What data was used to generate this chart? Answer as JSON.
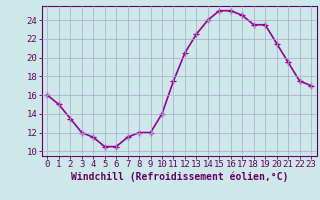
{
  "x": [
    0,
    1,
    2,
    3,
    4,
    5,
    6,
    7,
    8,
    9,
    10,
    11,
    12,
    13,
    14,
    15,
    16,
    17,
    18,
    19,
    20,
    21,
    22,
    23
  ],
  "y": [
    16,
    15,
    13.5,
    12,
    11.5,
    10.5,
    10.5,
    11.5,
    12,
    12,
    14,
    17.5,
    20.5,
    22.5,
    24,
    25,
    25,
    24.5,
    23.5,
    23.5,
    21.5,
    19.5,
    17.5,
    17
  ],
  "xlim": [
    -0.5,
    23.5
  ],
  "ylim": [
    9.5,
    25.5
  ],
  "yticks": [
    10,
    12,
    14,
    16,
    18,
    20,
    22,
    24
  ],
  "xticks": [
    0,
    1,
    2,
    3,
    4,
    5,
    6,
    7,
    8,
    9,
    10,
    11,
    12,
    13,
    14,
    15,
    16,
    17,
    18,
    19,
    20,
    21,
    22,
    23
  ],
  "xlabel": "Windchill (Refroidissement éolien,°C)",
  "line_color": "#990099",
  "marker": "+",
  "marker_size": 4,
  "background_color": "#cce8e8",
  "grid_color": "#aaaacc",
  "axis_color": "#660066",
  "tick_color": "#660066",
  "label_color": "#660066",
  "xlabel_fontsize": 7,
  "tick_fontsize": 6.5,
  "linewidth": 1.2
}
